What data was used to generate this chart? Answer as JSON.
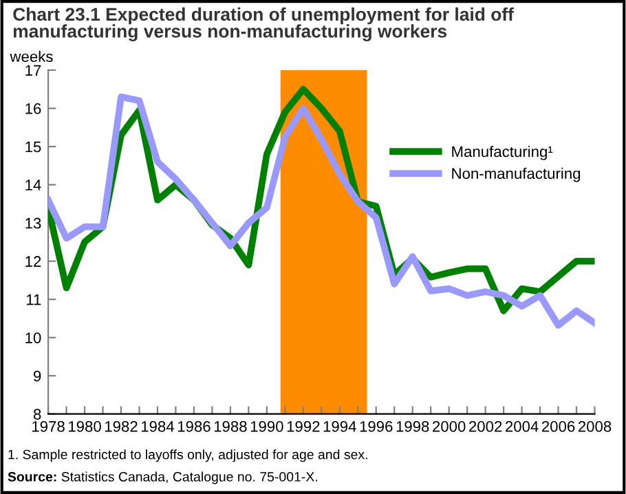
{
  "chart_data": {
    "type": "line",
    "title": "Chart 23.1 Expected duration of unemployment for laid off\nmanufacturing versus non-manufacturing workers",
    "ylabel": "weeks",
    "x": [
      1978,
      1979,
      1980,
      1981,
      1982,
      1983,
      1984,
      1985,
      1986,
      1987,
      1988,
      1989,
      1990,
      1991,
      1992,
      1993,
      1994,
      1995,
      1996,
      1997,
      1998,
      1999,
      2000,
      2001,
      2002,
      2003,
      2004,
      2005,
      2006,
      2007,
      2008
    ],
    "series": [
      {
        "name": "Manufacturing¹",
        "color": "#008000",
        "values": [
          13.4,
          11.3,
          12.5,
          12.9,
          15.3,
          15.95,
          13.6,
          14.0,
          13.6,
          12.95,
          12.6,
          11.9,
          14.8,
          15.9,
          16.5,
          16.0,
          15.4,
          13.56,
          13.44,
          11.64,
          12.07,
          11.58,
          11.7,
          11.8,
          11.8,
          10.7,
          11.28,
          11.2,
          11.6,
          12.0,
          12.0
        ]
      },
      {
        "name": "Non-manufacturing",
        "color": "#9999ff",
        "values": [
          13.6,
          12.6,
          12.9,
          12.9,
          16.3,
          16.2,
          14.6,
          14.15,
          13.6,
          13.0,
          12.4,
          13.0,
          13.4,
          15.25,
          16.0,
          15.18,
          14.28,
          13.56,
          13.14,
          11.4,
          12.12,
          11.22,
          11.28,
          11.1,
          11.2,
          11.1,
          10.82,
          11.1,
          10.32,
          10.7,
          10.38
        ]
      }
    ],
    "bands": [
      {
        "axis": "x",
        "from": 1990.75,
        "to": 1995.5,
        "color": "#ff8c00"
      }
    ],
    "xlim": [
      1978,
      2008
    ],
    "xticks": [
      1978,
      {
        "value": 1979,
        "label": null
      },
      1980,
      {
        "value": 1981,
        "label": null
      },
      1982,
      {
        "value": 1983,
        "label": null
      },
      1984,
      {
        "value": 1985,
        "label": null
      },
      1986,
      {
        "value": 1987,
        "label": null
      },
      1988,
      {
        "value": 1989,
        "label": null
      },
      1990,
      {
        "value": 1991,
        "label": null
      },
      1992,
      {
        "value": 1993,
        "label": null
      },
      1994,
      {
        "value": 1995,
        "label": null
      },
      1996,
      {
        "value": 1997,
        "label": null
      },
      1998,
      {
        "value": 1999,
        "label": null
      },
      2000,
      {
        "value": 2001,
        "label": null
      },
      2002,
      {
        "value": 2003,
        "label": null
      },
      2004,
      {
        "value": 2005,
        "label": null
      },
      2006,
      {
        "value": 2007,
        "label": null
      },
      2008
    ],
    "ylim": [
      8,
      17
    ],
    "yticks": [
      8,
      9,
      10,
      11,
      12,
      13,
      14,
      15,
      16,
      17
    ],
    "grid": false,
    "legend": "top right",
    "marker": "none",
    "line_style": "solid",
    "annotations": [
      "1. Sample restricted to layoffs only, adjusted for age and sex.",
      "Source:",
      " Statistics Canada, Catalogue no. 75-001-X."
    ]
  }
}
